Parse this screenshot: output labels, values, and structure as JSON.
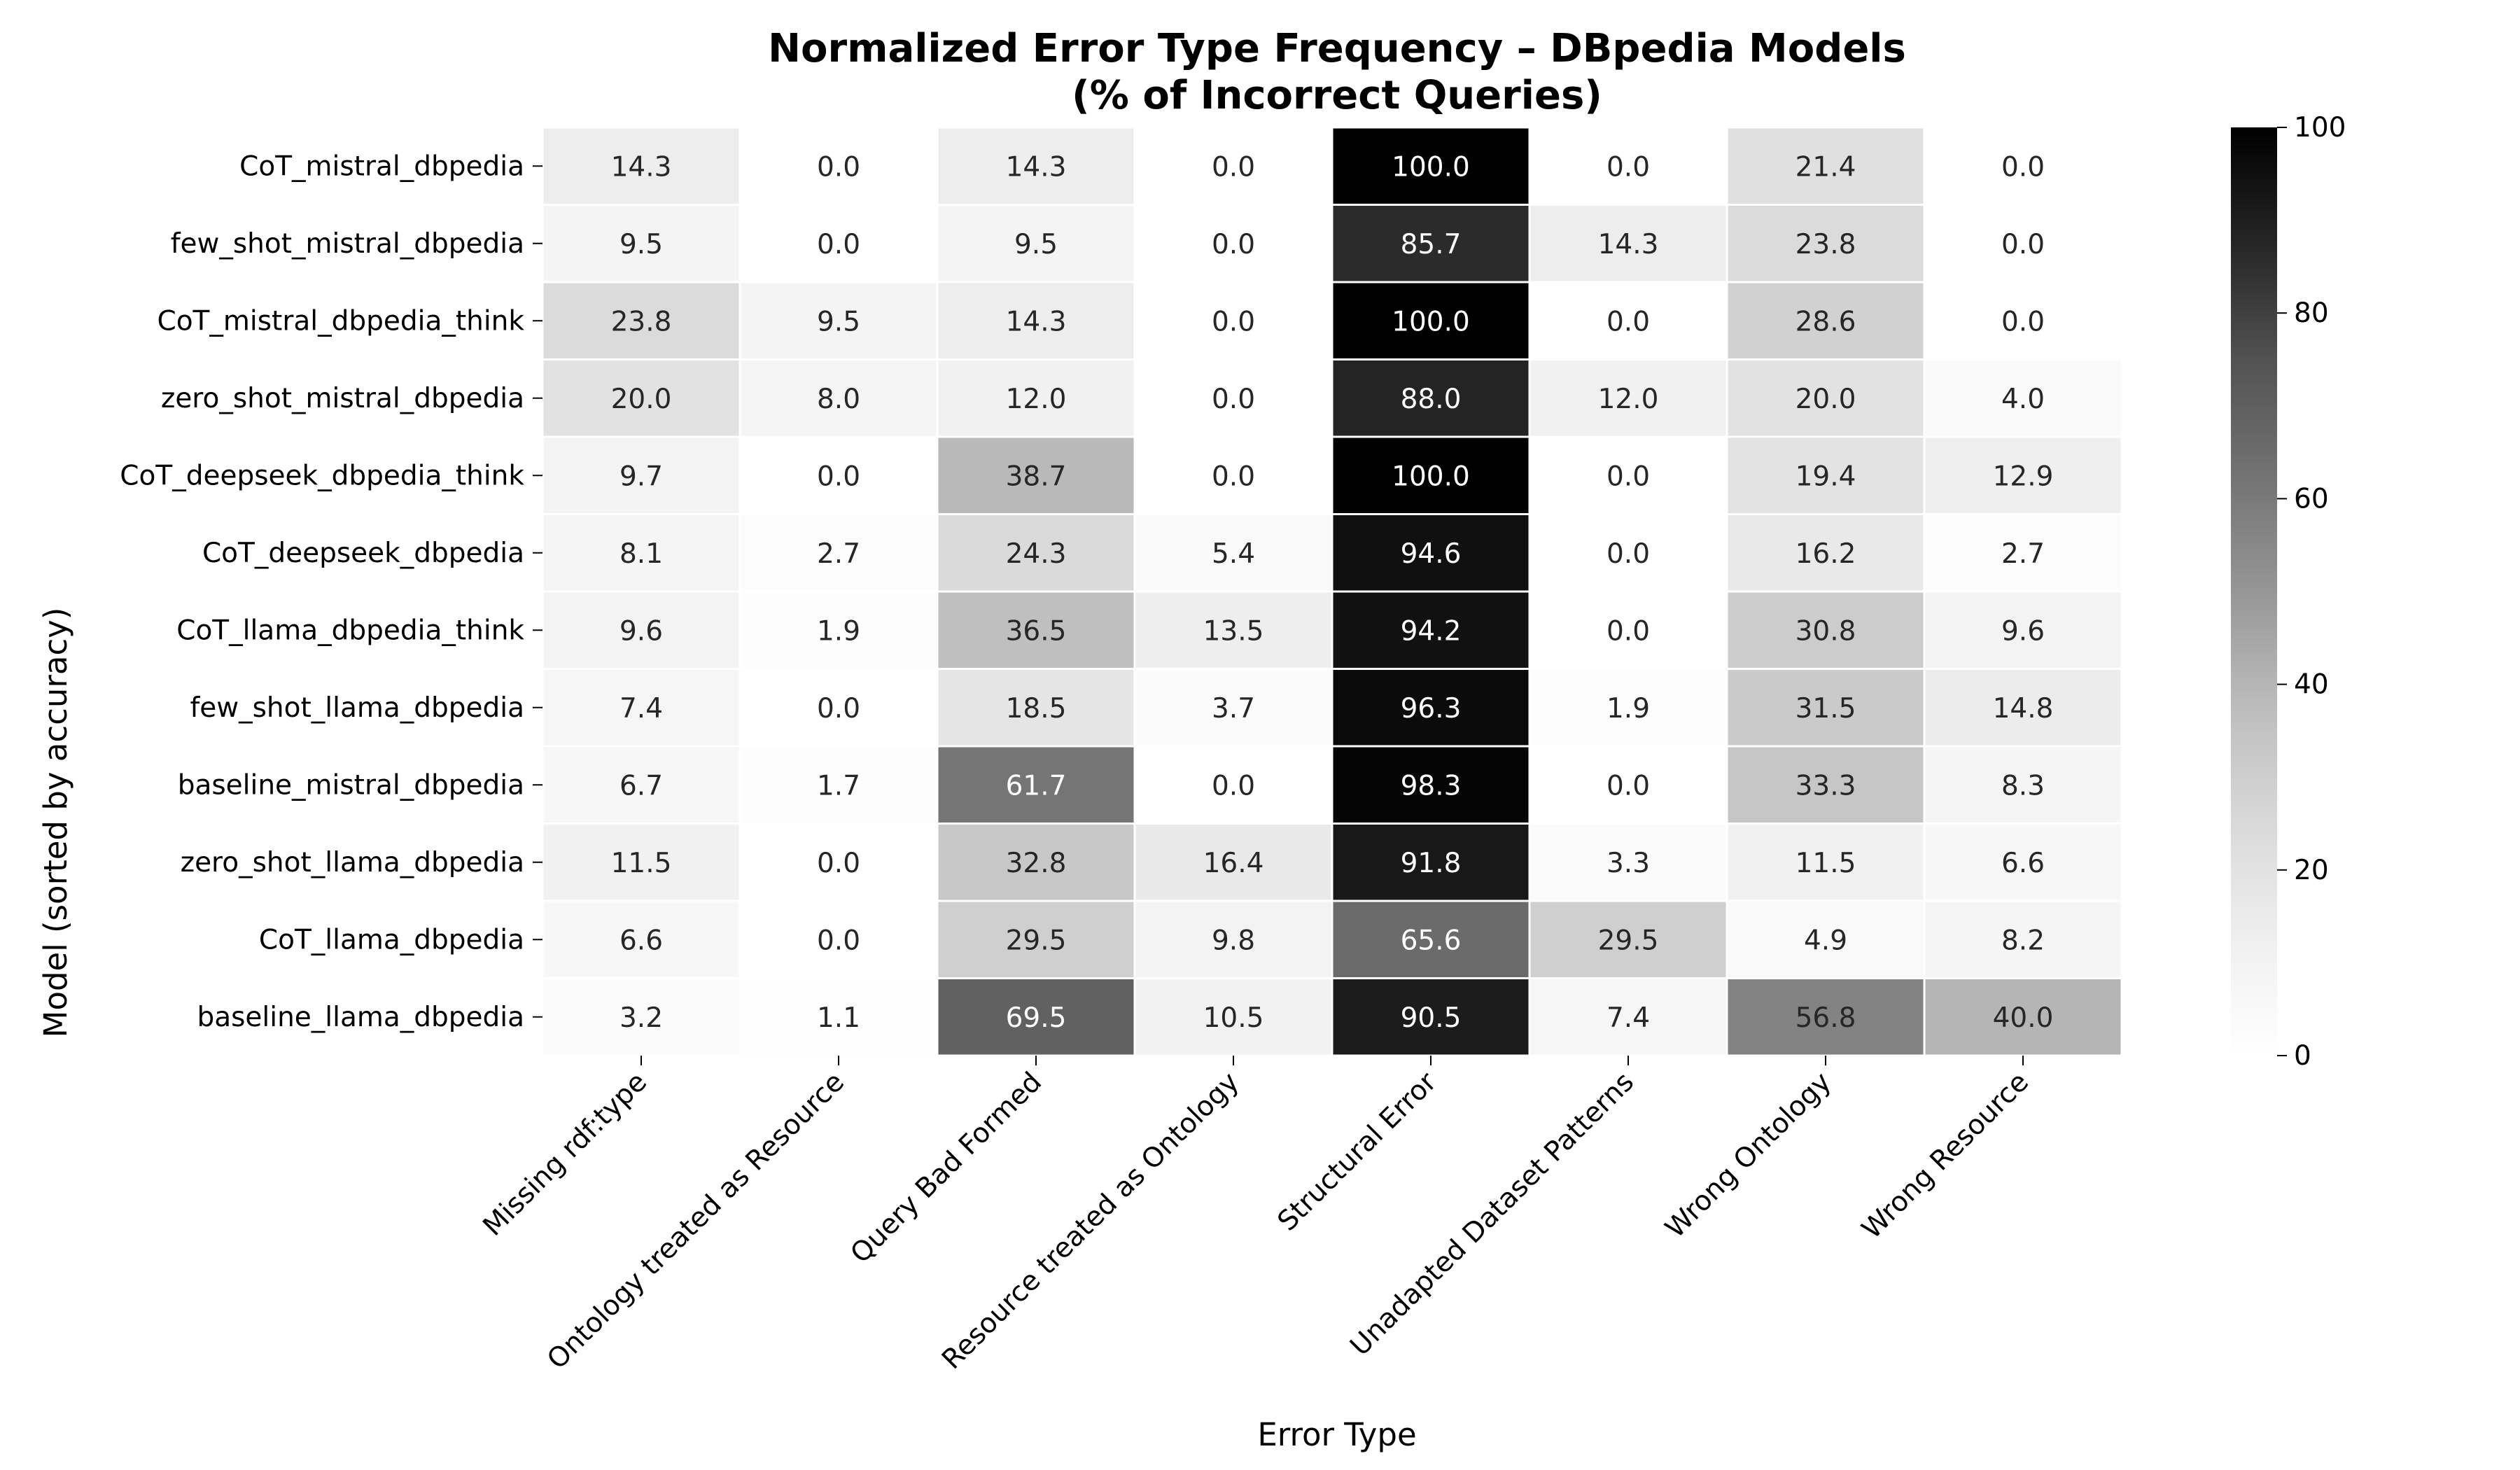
{
  "chart_data": {
    "type": "heatmap",
    "title": "Normalized Error Type Frequency – DBpedia Models",
    "subtitle": "(% of Incorrect Queries)",
    "xlabel": "Error Type",
    "ylabel": "Model (sorted by accuracy)",
    "columns": [
      "Missing rdf:type",
      "Ontology treated as Resource",
      "Query Bad Formed",
      "Resource treated as Ontology",
      "Structural Error",
      "Unadapted Dataset Patterns",
      "Wrong Ontology",
      "Wrong Resource"
    ],
    "rows": [
      "CoT_mistral_dbpedia",
      "few_shot_mistral_dbpedia",
      "CoT_mistral_dbpedia_think",
      "zero_shot_mistral_dbpedia",
      "CoT_deepseek_dbpedia_think",
      "CoT_deepseek_dbpedia",
      "CoT_llama_dbpedia_think",
      "few_shot_llama_dbpedia",
      "baseline_mistral_dbpedia",
      "zero_shot_llama_dbpedia",
      "CoT_llama_dbpedia",
      "baseline_llama_dbpedia"
    ],
    "values": [
      [
        14.3,
        0.0,
        14.3,
        0.0,
        100.0,
        0.0,
        21.4,
        0.0
      ],
      [
        9.5,
        0.0,
        9.5,
        0.0,
        85.7,
        14.3,
        23.8,
        0.0
      ],
      [
        23.8,
        9.5,
        14.3,
        0.0,
        100.0,
        0.0,
        28.6,
        0.0
      ],
      [
        20.0,
        8.0,
        12.0,
        0.0,
        88.0,
        12.0,
        20.0,
        4.0
      ],
      [
        9.7,
        0.0,
        38.7,
        0.0,
        100.0,
        0.0,
        19.4,
        12.9
      ],
      [
        8.1,
        2.7,
        24.3,
        5.4,
        94.6,
        0.0,
        16.2,
        2.7
      ],
      [
        9.6,
        1.9,
        36.5,
        13.5,
        94.2,
        0.0,
        30.8,
        9.6
      ],
      [
        7.4,
        0.0,
        18.5,
        3.7,
        96.3,
        1.9,
        31.5,
        14.8
      ],
      [
        6.7,
        1.7,
        61.7,
        0.0,
        98.3,
        0.0,
        33.3,
        8.3
      ],
      [
        11.5,
        0.0,
        32.8,
        16.4,
        91.8,
        3.3,
        11.5,
        6.6
      ],
      [
        6.6,
        0.0,
        29.5,
        9.8,
        65.6,
        29.5,
        4.9,
        8.2
      ],
      [
        3.2,
        1.1,
        69.5,
        10.5,
        90.5,
        7.4,
        56.8,
        40.0
      ]
    ],
    "colorbar": {
      "range": [
        0,
        100
      ],
      "ticks": [
        "0",
        "20",
        "40",
        "60",
        "80",
        "100"
      ],
      "colormap": "Greys",
      "low_color": "#ffffff",
      "high_color": "#000000"
    },
    "grid": false
  }
}
